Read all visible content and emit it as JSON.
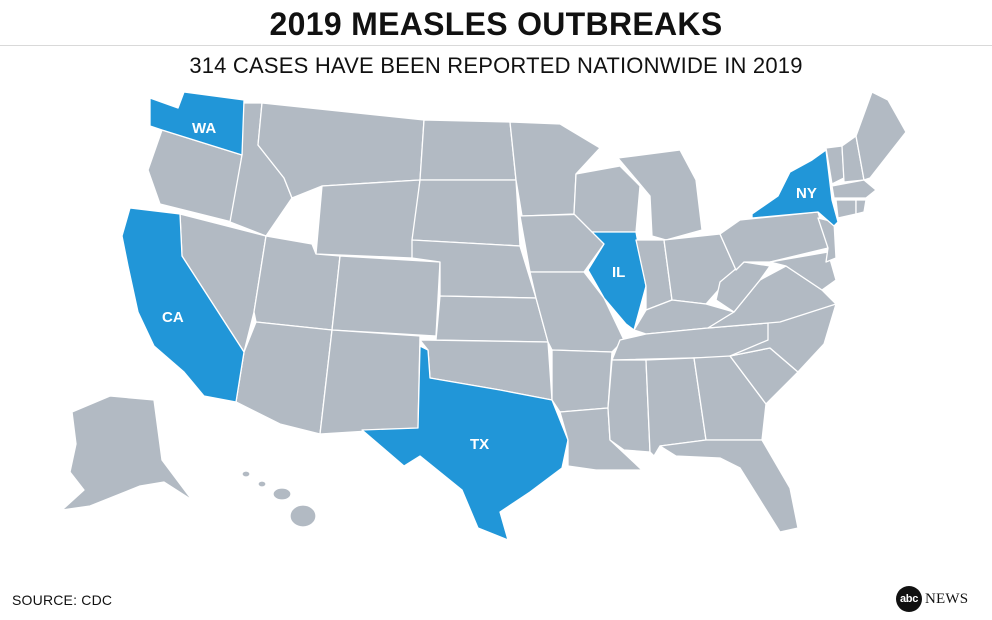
{
  "header": {
    "title": "2019 MEASLES OUTBREAKS",
    "subtitle": "314 CASES HAVE BEEN REPORTED NATIONWIDE IN 2019"
  },
  "map": {
    "colors": {
      "default_state": "#b2bac3",
      "outbreak_state": "#2196d8",
      "border": "#ffffff"
    },
    "highlighted_states": [
      {
        "code": "WA",
        "label": "WA"
      },
      {
        "code": "CA",
        "label": "CA"
      },
      {
        "code": "IL",
        "label": "IL"
      },
      {
        "code": "TX",
        "label": "TX"
      },
      {
        "code": "NY",
        "label": "NY"
      }
    ]
  },
  "footer": {
    "source": "SOURCE: CDC",
    "logo_mark": "abc",
    "logo_word": "NEWS"
  }
}
